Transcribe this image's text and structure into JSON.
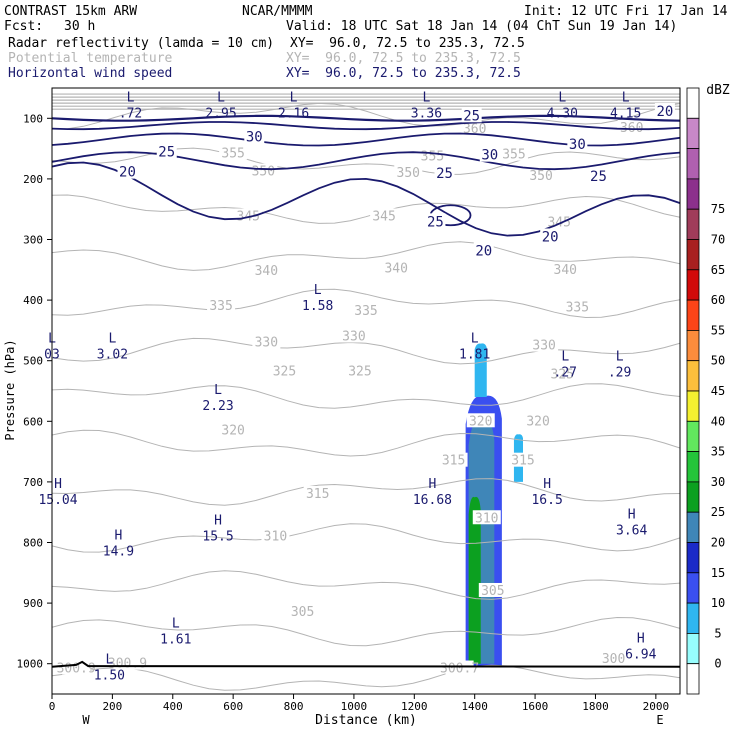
{
  "header": {
    "model": "CONTRAST 15km ARW",
    "org": "NCAR/MMMM",
    "init": "Init: 12 UTC Fri 17 Jan 14",
    "fcst_label": "Fcst:",
    "fcst_value": "30 h",
    "valid": "Valid: 18 UTC Sat 18 Jan 14 (04 ChT Sun 19 Jan 14)",
    "fields": [
      {
        "name": "Radar reflectivity (lamda = 10 cm)",
        "xy": "XY=  96.0, 72.5 to 235.3, 72.5",
        "color": "#000000"
      },
      {
        "name": "Potential temperature",
        "xy": "XY=  96.0, 72.5 to 235.3, 72.5",
        "color": "#b4b4b4"
      },
      {
        "name": "Horizontal wind speed",
        "xy": "XY=  96.0, 72.5 to 235.3, 72.5",
        "color": "#1a1a6e"
      }
    ]
  },
  "chart_data": {
    "type": "cross-section",
    "xlabel": "Distance (km)",
    "ylabel": "Pressure (hPa)",
    "x_ticks": [
      0,
      200,
      400,
      600,
      800,
      1000,
      1200,
      1400,
      1600,
      1800,
      2000
    ],
    "xlim": [
      0,
      2080
    ],
    "y_ticks": [
      100,
      200,
      300,
      400,
      500,
      600,
      700,
      800,
      900,
      1000
    ],
    "ylim": [
      1050,
      50
    ],
    "x_end_labels": {
      "left": "W",
      "right": "E"
    },
    "colorbar": {
      "unit": "dBZ",
      "levels": [
        0,
        5,
        10,
        15,
        20,
        25,
        30,
        35,
        40,
        45,
        50,
        55,
        60,
        65,
        70,
        75
      ],
      "colors": [
        "#ffffff",
        "#97fdfd",
        "#2fb6f0",
        "#3a4ff0",
        "#1a2ac8",
        "#3f86b8",
        "#0ca020",
        "#24c43a",
        "#62e85e",
        "#f4f030",
        "#fcbf3c",
        "#fc8c3c",
        "#fc4418",
        "#d20a0a",
        "#a82020",
        "#a03c5a",
        "#8c308c",
        "#b060b0",
        "#c888c8",
        "#ffffff"
      ]
    },
    "reflectivity_cells": [
      {
        "x0": 1370,
        "x1": 1490,
        "p_top": 550,
        "p_bot": 1005,
        "dbz": 10
      },
      {
        "x0": 1380,
        "x1": 1465,
        "p_top": 590,
        "p_bot": 1000,
        "dbz": 20
      },
      {
        "x0": 1380,
        "x1": 1420,
        "p_top": 720,
        "p_bot": 1000,
        "dbz": 25
      },
      {
        "x0": 1400,
        "x1": 1440,
        "p_top": 470,
        "p_bot": 560,
        "dbz": 5
      },
      {
        "x0": 1530,
        "x1": 1560,
        "p_top": 620,
        "p_bot": 700,
        "dbz": 5
      }
    ],
    "theta_contours": [
      {
        "value": 300,
        "label": "300.9",
        "label_x": 240,
        "label_p": 1002
      },
      {
        "value": 305,
        "label": "305",
        "label_x": 1460,
        "label_p": 880
      },
      {
        "value": 310,
        "label": "310",
        "label_x": 740,
        "label_p": 790
      },
      {
        "value": 315,
        "label": "315",
        "label_x": 880,
        "label_p": 720
      },
      {
        "value": 320,
        "label": "320",
        "label_x": 600,
        "label_p": 615
      },
      {
        "value": 325,
        "label": "325",
        "label_x": 760,
        "label_p": 515
      },
      {
        "value": 330,
        "label": "330",
        "label_x": 900,
        "label_p": 465
      },
      {
        "value": 335,
        "label": "335",
        "label_x": 1030,
        "label_p": 418
      },
      {
        "value": 340,
        "label": "340",
        "label_x": 1140,
        "label_p": 360
      },
      {
        "value": 345,
        "label": "345",
        "label_x": 1100,
        "label_p": 262
      },
      {
        "value": 350,
        "label": "350",
        "label_x": 1180,
        "label_p": 188
      },
      {
        "value": 355,
        "label": "355",
        "label_x": 1260,
        "label_p": 163
      },
      {
        "value": 360,
        "label": "360",
        "label_x": 1400,
        "label_p": 118
      }
    ],
    "theta_labels": [
      {
        "text": "300.9",
        "x": 250,
        "p": 1000
      },
      {
        "text": "300.9",
        "x": 80,
        "p": 1008
      },
      {
        "text": "300.7",
        "x": 1350,
        "p": 1008
      },
      {
        "text": "300",
        "x": 1860,
        "p": 992
      },
      {
        "text": "305",
        "x": 830,
        "p": 915
      },
      {
        "text": "305",
        "x": 1460,
        "p": 880
      },
      {
        "text": "310",
        "x": 740,
        "p": 790
      },
      {
        "text": "310",
        "x": 1440,
        "p": 760
      },
      {
        "text": "315",
        "x": 880,
        "p": 720
      },
      {
        "text": "315",
        "x": 1330,
        "p": 665
      },
      {
        "text": "315",
        "x": 1560,
        "p": 665
      },
      {
        "text": "320",
        "x": 600,
        "p": 615
      },
      {
        "text": "320",
        "x": 1420,
        "p": 600
      },
      {
        "text": "320",
        "x": 1610,
        "p": 600
      },
      {
        "text": "325",
        "x": 770,
        "p": 518
      },
      {
        "text": "325",
        "x": 1020,
        "p": 518
      },
      {
        "text": "325",
        "x": 1690,
        "p": 523
      },
      {
        "text": "330",
        "x": 710,
        "p": 470
      },
      {
        "text": "330",
        "x": 1000,
        "p": 460
      },
      {
        "text": "330",
        "x": 1630,
        "p": 475
      },
      {
        "text": "335",
        "x": 560,
        "p": 410
      },
      {
        "text": "335",
        "x": 1040,
        "p": 418
      },
      {
        "text": "335",
        "x": 1740,
        "p": 412
      },
      {
        "text": "340",
        "x": 710,
        "p": 352
      },
      {
        "text": "340",
        "x": 1140,
        "p": 348
      },
      {
        "text": "340",
        "x": 1700,
        "p": 350
      },
      {
        "text": "345",
        "x": 650,
        "p": 262
      },
      {
        "text": "345",
        "x": 1100,
        "p": 262
      },
      {
        "text": "345",
        "x": 1680,
        "p": 272
      },
      {
        "text": "350",
        "x": 700,
        "p": 188
      },
      {
        "text": "350",
        "x": 1180,
        "p": 190
      },
      {
        "text": "350",
        "x": 1620,
        "p": 195
      },
      {
        "text": "355",
        "x": 600,
        "p": 158
      },
      {
        "text": "355",
        "x": 1260,
        "p": 163
      },
      {
        "text": "355",
        "x": 1530,
        "p": 160
      },
      {
        "text": "360",
        "x": 1400,
        "p": 118
      },
      {
        "text": "360",
        "x": 1920,
        "p": 116
      }
    ],
    "wind_labels": [
      {
        "text": "30",
        "x": 670,
        "p": 130
      },
      {
        "text": "30",
        "x": 1450,
        "p": 160
      },
      {
        "text": "30",
        "x": 1740,
        "p": 142
      },
      {
        "text": "25",
        "x": 380,
        "p": 155
      },
      {
        "text": "25",
        "x": 1300,
        "p": 190
      },
      {
        "text": "25",
        "x": 1810,
        "p": 195
      },
      {
        "text": "25",
        "x": 1390,
        "p": 95
      },
      {
        "text": "25",
        "x": 1270,
        "p": 270
      },
      {
        "text": "20",
        "x": 250,
        "p": 188
      },
      {
        "text": "20",
        "x": 1430,
        "p": 318
      },
      {
        "text": "20",
        "x": 1650,
        "p": 295
      },
      {
        "text": "20",
        "x": 2030,
        "p": 88
      }
    ],
    "pressure_extrema": [
      {
        "type": "L",
        "value": ".72",
        "x": 260,
        "p": 72
      },
      {
        "type": "L",
        "value": "2.95",
        "x": 560,
        "p": 72
      },
      {
        "type": "L",
        "value": "2.16",
        "x": 800,
        "p": 72
      },
      {
        "type": "L",
        "value": "3.36",
        "x": 1240,
        "p": 72
      },
      {
        "type": "L",
        "value": "4.30",
        "x": 1690,
        "p": 72
      },
      {
        "type": "L",
        "value": "4.15",
        "x": 1900,
        "p": 72
      },
      {
        "type": "L",
        "value": "1.58",
        "x": 880,
        "p": 390
      },
      {
        "type": "L",
        "value": "03",
        "x": 0,
        "p": 470
      },
      {
        "type": "L",
        "value": "3.02",
        "x": 200,
        "p": 470
      },
      {
        "type": "L",
        "value": "1.81",
        "x": 1400,
        "p": 470
      },
      {
        "type": "L",
        "value": ".27",
        "x": 1700,
        "p": 500
      },
      {
        "type": "L",
        "value": ".29",
        "x": 1880,
        "p": 500
      },
      {
        "type": "L",
        "value": "2.23",
        "x": 550,
        "p": 555
      },
      {
        "type": "H",
        "value": "15.04",
        "x": 20,
        "p": 710
      },
      {
        "type": "H",
        "value": "16.68",
        "x": 1260,
        "p": 710
      },
      {
        "type": "H",
        "value": "16.5",
        "x": 1640,
        "p": 710
      },
      {
        "type": "H",
        "value": "15.5",
        "x": 550,
        "p": 770
      },
      {
        "type": "H",
        "value": "14.9",
        "x": 220,
        "p": 795
      },
      {
        "type": "H",
        "value": "3.64",
        "x": 1920,
        "p": 760
      },
      {
        "type": "L",
        "value": "1.61",
        "x": 410,
        "p": 940
      },
      {
        "type": "L",
        "value": "1.50",
        "x": 190,
        "p": 1000
      },
      {
        "type": "H",
        "value": "6.94",
        "x": 1950,
        "p": 965
      }
    ]
  }
}
